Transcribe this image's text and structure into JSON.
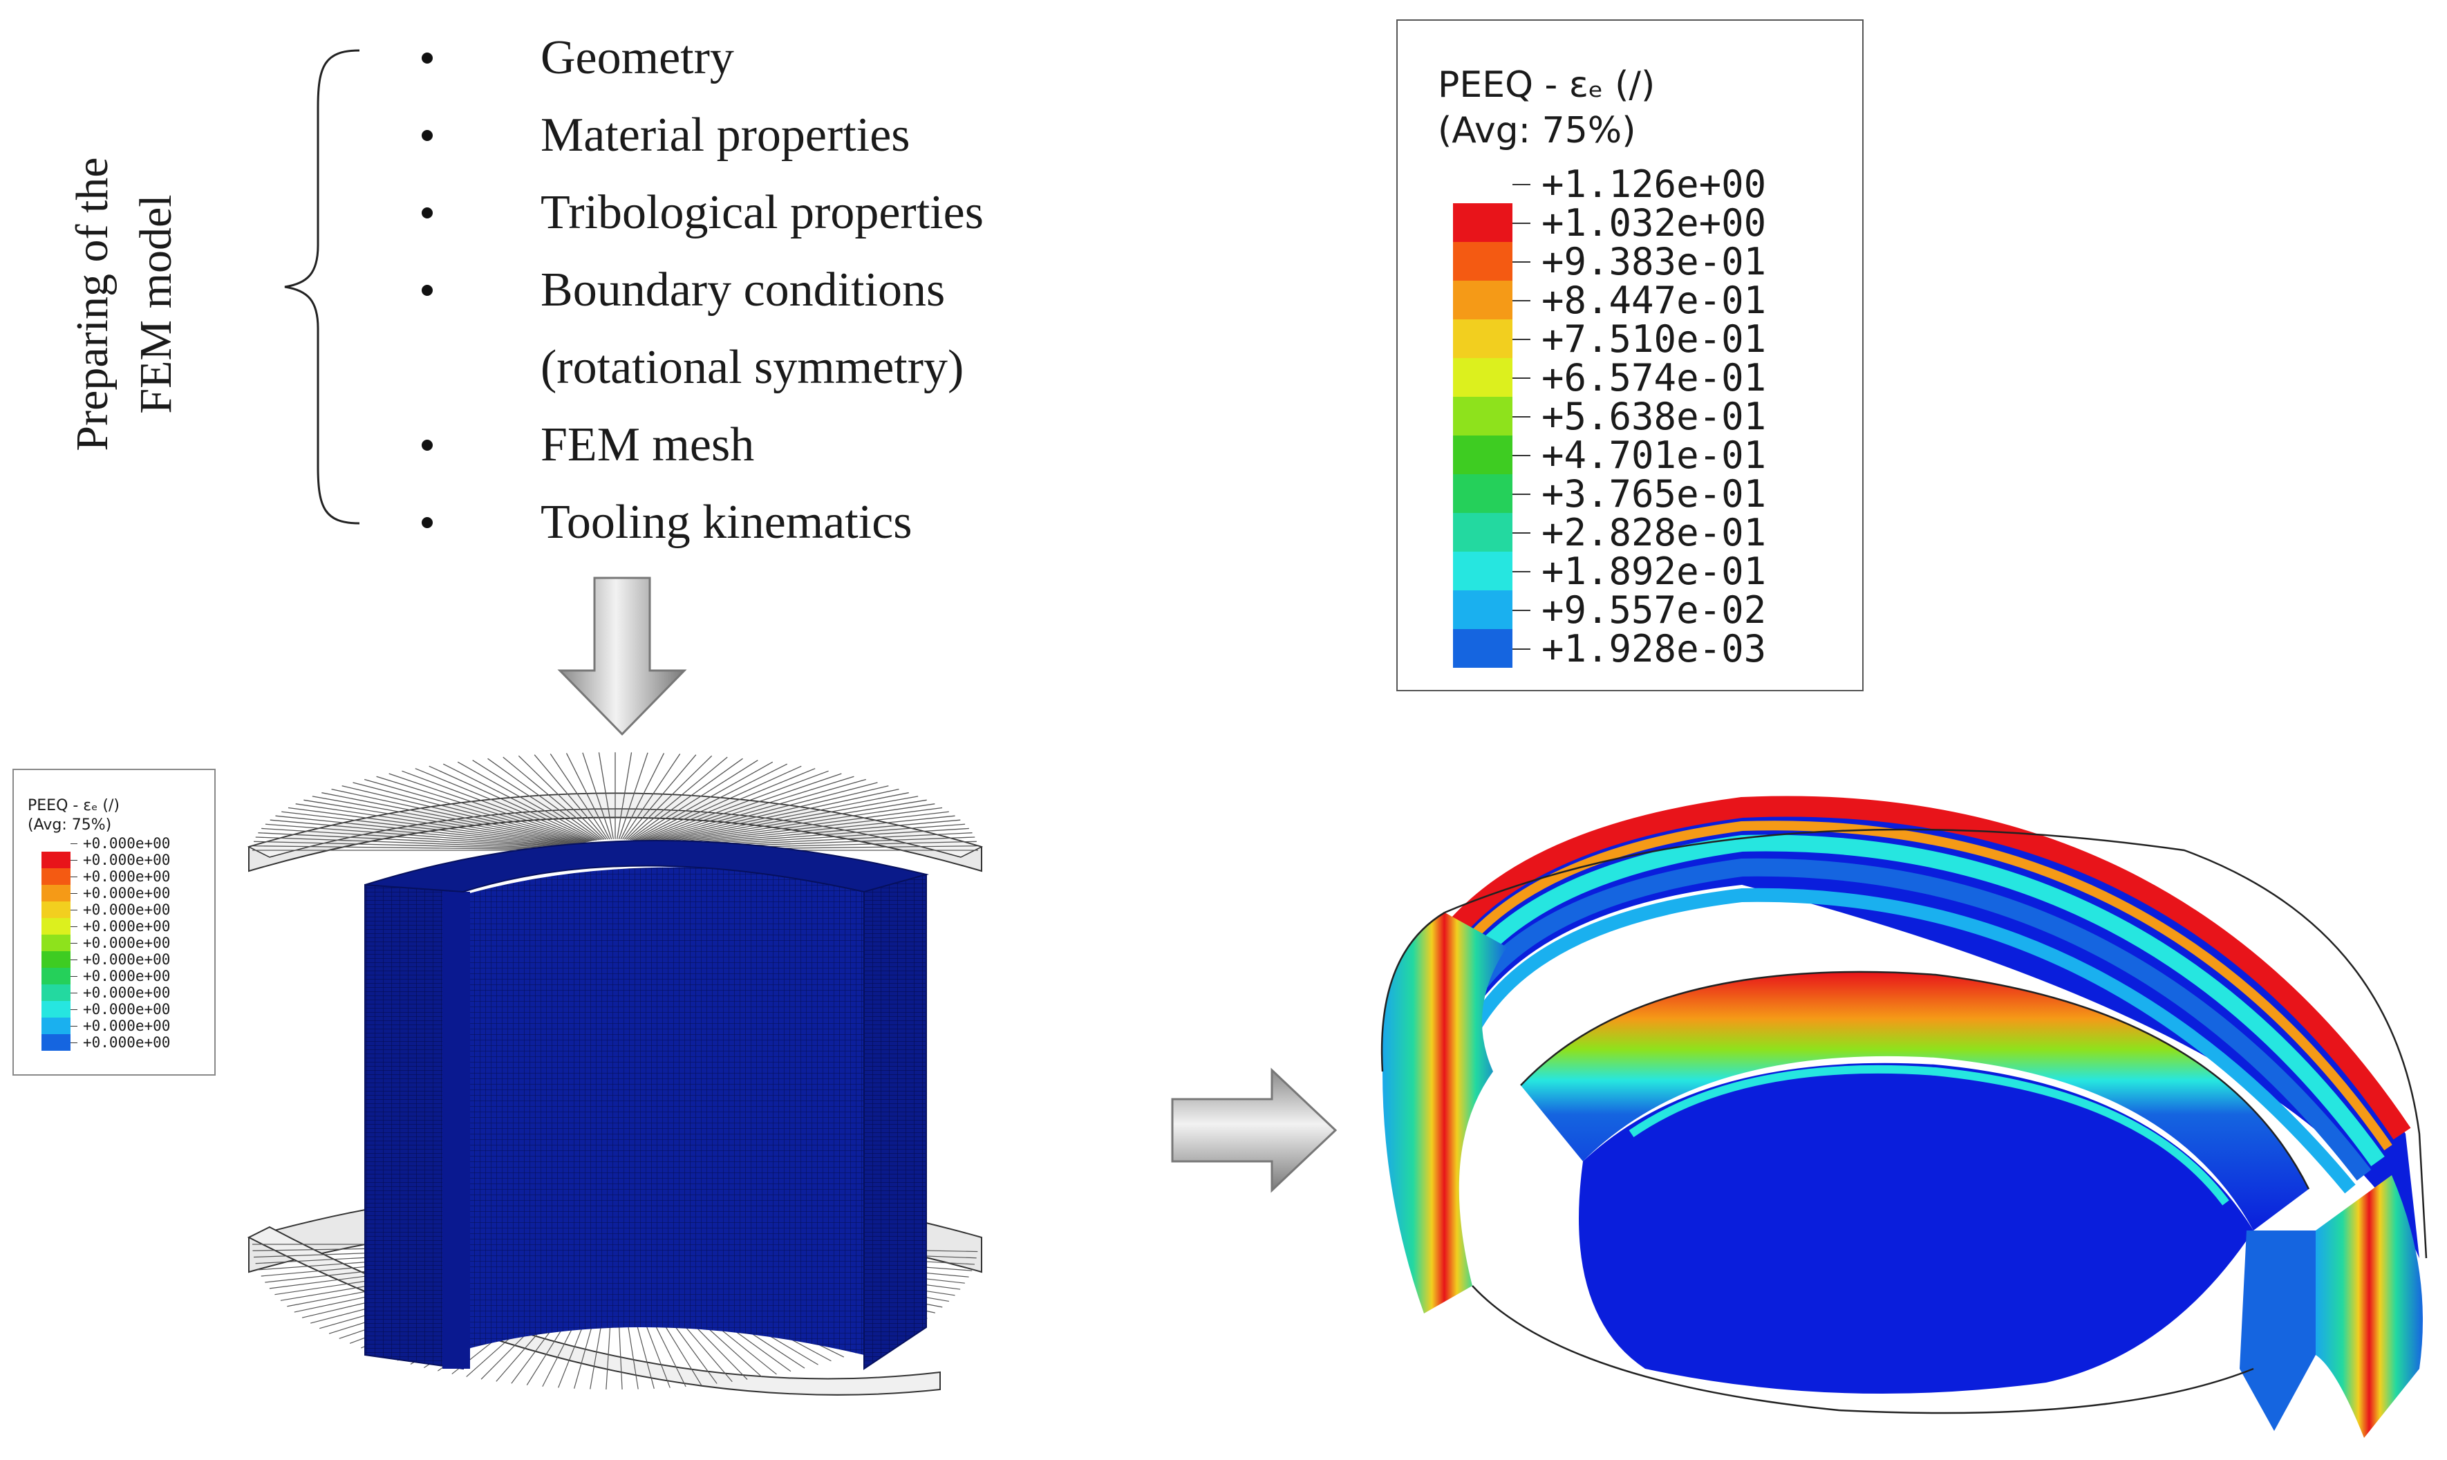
{
  "title": {
    "line1": "Preparing of the",
    "line2": "FEM model"
  },
  "steps": [
    {
      "label": "Geometry",
      "bullet": true
    },
    {
      "label": "Material properties",
      "bullet": true
    },
    {
      "label": "Tribological properties",
      "bullet": true
    },
    {
      "label": "Boundary conditions",
      "bullet": true
    },
    {
      "label": "(rotational symmetry)",
      "bullet": false
    },
    {
      "label": "FEM mesh",
      "bullet": true
    },
    {
      "label": "Tooling kinematics",
      "bullet": true
    }
  ],
  "legend_main": {
    "title": "PEEQ - εₑ (/)",
    "avg": "(Avg: 75%)",
    "values": [
      "+1.126e+00",
      "+1.032e+00",
      "+9.383e-01",
      "+8.447e-01",
      "+7.510e-01",
      "+6.574e-01",
      "+5.638e-01",
      "+4.701e-01",
      "+3.765e-01",
      "+2.828e-01",
      "+1.892e-01",
      "+9.557e-02",
      "+1.928e-03"
    ]
  },
  "legend_small": {
    "title": "PEEQ - εₑ (/)",
    "avg": "(Avg: 75%)",
    "values": [
      "+0.000e+00",
      "+0.000e+00",
      "+0.000e+00",
      "+0.000e+00",
      "+0.000e+00",
      "+0.000e+00",
      "+0.000e+00",
      "+0.000e+00",
      "+0.000e+00",
      "+0.000e+00",
      "+0.000e+00",
      "+0.000e+00",
      "+0.000e+00"
    ]
  },
  "colors": {
    "contour_scale": [
      "#e8141a",
      "#f45a12",
      "#f59a17",
      "#f2cf1f",
      "#dcf01e",
      "#8ee21c",
      "#3ecc22",
      "#25d05a",
      "#23d9a0",
      "#26e6e0",
      "#1ab0ef",
      "#1565e0",
      "#0a1edc"
    ],
    "mesh_blue": "#0a1c96",
    "arrow_gray": "#b0b0b0"
  },
  "icons": {
    "flow_arrow_down": "arrow-down-icon",
    "flow_arrow_right": "arrow-right-icon"
  }
}
